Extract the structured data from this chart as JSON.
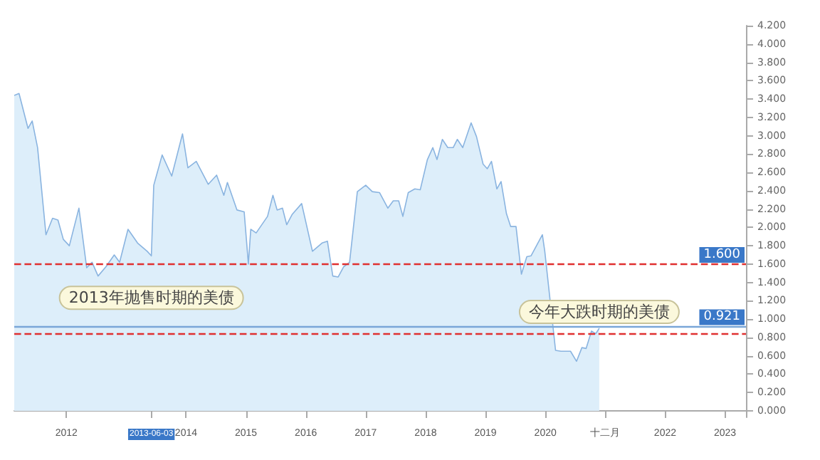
{
  "chart_data": {
    "type": "area",
    "x": [
      2011.13,
      2011.21,
      2011.36,
      2011.43,
      2011.52,
      2011.66,
      2011.77,
      2011.86,
      2011.95,
      2012.05,
      2012.21,
      2012.34,
      2012.43,
      2012.53,
      2012.66,
      2012.8,
      2012.89,
      2013.03,
      2013.19,
      2013.35,
      2013.42,
      2013.46,
      2013.6,
      2013.76,
      2013.94,
      2014.03,
      2014.17,
      2014.37,
      2014.51,
      2014.63,
      2014.69,
      2014.85,
      2014.97,
      2015.04,
      2015.08,
      2015.17,
      2015.36,
      2015.45,
      2015.52,
      2015.61,
      2015.68,
      2015.77,
      2015.93,
      2016.11,
      2016.27,
      2016.36,
      2016.45,
      2016.54,
      2016.63,
      2016.73,
      2016.86,
      2017.0,
      2017.11,
      2017.23,
      2017.37,
      2017.46,
      2017.55,
      2017.62,
      2017.71,
      2017.82,
      2017.91,
      2018.03,
      2018.12,
      2018.19,
      2018.28,
      2018.37,
      2018.46,
      2018.53,
      2018.62,
      2018.76,
      2018.85,
      2018.96,
      2019.03,
      2019.1,
      2019.19,
      2019.26,
      2019.35,
      2019.42,
      2019.51,
      2019.6,
      2019.69,
      2019.76,
      2019.95,
      2019.99,
      2020.17,
      2020.26,
      2020.42,
      2020.52,
      2020.61,
      2020.68,
      2020.77,
      2020.84,
      2020.9
    ],
    "series": [
      {
        "color": "#8ab4e0",
        "values": [
          3.44,
          3.46,
          3.08,
          3.16,
          2.87,
          1.92,
          2.1,
          2.08,
          1.87,
          1.8,
          2.21,
          1.56,
          1.62,
          1.47,
          1.57,
          1.7,
          1.62,
          1.98,
          1.83,
          1.74,
          1.69,
          2.46,
          2.79,
          2.56,
          3.02,
          2.65,
          2.72,
          2.47,
          2.57,
          2.35,
          2.49,
          2.19,
          2.17,
          1.6,
          1.98,
          1.94,
          2.12,
          2.35,
          2.19,
          2.21,
          2.03,
          2.14,
          2.26,
          1.74,
          1.83,
          1.85,
          1.47,
          1.46,
          1.57,
          1.62,
          2.39,
          2.46,
          2.39,
          2.38,
          2.21,
          2.29,
          2.29,
          2.12,
          2.38,
          2.42,
          2.41,
          2.74,
          2.87,
          2.74,
          2.96,
          2.87,
          2.87,
          2.96,
          2.87,
          3.14,
          2.99,
          2.69,
          2.64,
          2.72,
          2.42,
          2.5,
          2.15,
          2.01,
          2.01,
          1.49,
          1.68,
          1.69,
          1.92,
          1.74,
          0.66,
          0.65,
          0.65,
          0.54,
          0.69,
          0.68,
          0.87,
          0.84,
          0.9
        ]
      }
    ],
    "xlim": [
      2011.13,
      2023.35
    ],
    "xticks": [
      2012,
      {
        "value": 2013.42,
        "label": "2013-06-03"
      },
      2014,
      2015,
      2016,
      2017,
      2018,
      2019,
      2020,
      {
        "value": 2021,
        "label": "十二月"
      },
      2022,
      2023
    ],
    "ylim": [
      -0.07,
      4.2
    ],
    "yticks": [
      {
        "value": 0,
        "label": "0.000"
      },
      {
        "value": 0.2,
        "label": "0.200"
      },
      {
        "value": 0.4,
        "label": "0.400"
      },
      {
        "value": 0.6,
        "label": "0.600"
      },
      {
        "value": 0.8,
        "label": "0.800"
      },
      {
        "value": 1,
        "label": "1.000"
      },
      {
        "value": 1.2,
        "label": "1.200"
      },
      {
        "value": 1.4,
        "label": "1.400"
      },
      {
        "value": 1.6,
        "label": "1.600"
      },
      {
        "value": 1.8,
        "label": "1.800"
      },
      {
        "value": 2,
        "label": "2.000"
      },
      {
        "value": 2.2,
        "label": "2.200"
      },
      {
        "value": 2.4,
        "label": "2.400"
      },
      {
        "value": 2.6,
        "label": "2.600"
      },
      {
        "value": 2.8,
        "label": "2.800"
      },
      {
        "value": 3,
        "label": "3.000"
      },
      {
        "value": 3.2,
        "label": "3.200"
      },
      {
        "value": 3.4,
        "label": "3.400"
      },
      {
        "value": 3.6,
        "label": "3.600"
      },
      {
        "value": 3.8,
        "label": "3.800"
      },
      {
        "value": 4,
        "label": "4.000"
      },
      {
        "value": 4.2,
        "label": "4.200"
      }
    ],
    "ref_lines": [
      {
        "axis": "y",
        "value": 1.6,
        "label": "1.600",
        "color": "#e03030",
        "line_style": "dashed"
      },
      {
        "axis": "y",
        "value": 0.921,
        "label": "0.921",
        "color": "#7aa6d8",
        "line_style": "solid"
      },
      {
        "axis": "y",
        "value": 0.84,
        "color": "#e03030",
        "line_style": "dashed"
      }
    ],
    "annotations": [
      {
        "text": "2013年抛售时期的美债",
        "x": 2013.42,
        "y": 1.69
      },
      {
        "text": "今年大跌时期的美债",
        "x": 2020.9,
        "y": 0.9
      }
    ],
    "grid": false,
    "marker": "none",
    "line_style": "solid"
  }
}
